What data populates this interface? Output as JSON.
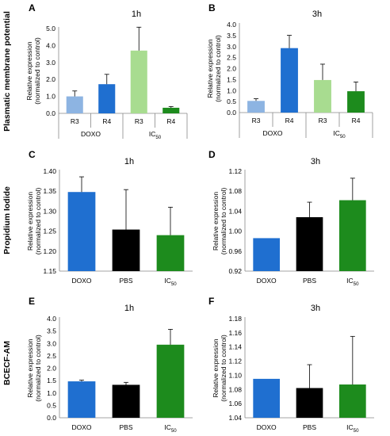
{
  "row_labels": [
    "Plasmatic membrane potential",
    "Propidium Iodide",
    "BCECF-AM"
  ],
  "colors": {
    "light_blue": "#8db4e2",
    "blue": "#1f6fd0",
    "light_green": "#a8dc90",
    "green": "#1d8b1d",
    "black": "#000000"
  },
  "chart_data": [
    {
      "panel": "A",
      "title": "1h",
      "type": "bar",
      "ylabel": "Relative expression (normalized to control)",
      "ylim": [
        0,
        5.0
      ],
      "yticks": [
        "0.0",
        "1.0",
        "2.0",
        "3.0",
        "4.0",
        "5.0"
      ],
      "categories": [
        "R3",
        "R4",
        "R3",
        "R4"
      ],
      "groups": [
        {
          "label": "DOXO",
          "sub": ""
        },
        {
          "label": "IC",
          "sub": "50"
        }
      ],
      "values": [
        1.0,
        1.72,
        3.7,
        0.33
      ],
      "errors": [
        0.32,
        0.58,
        1.38,
        0.07
      ],
      "colors": [
        "#8db4e2",
        "#1f6fd0",
        "#a8dc90",
        "#1d8b1d"
      ]
    },
    {
      "panel": "B",
      "title": "3h",
      "type": "bar",
      "ylabel": "Relative expression (normalized to control)",
      "ylim": [
        0,
        4.0
      ],
      "yticks": [
        "0.0",
        "0.5",
        "1.0",
        "1.5",
        "2.0",
        "2.5",
        "3.0",
        "3.5",
        "4.0"
      ],
      "categories": [
        "R3",
        "R4",
        "R3",
        "R4"
      ],
      "groups": [
        {
          "label": "DOXO",
          "sub": ""
        },
        {
          "label": "IC",
          "sub": "50"
        }
      ],
      "values": [
        0.53,
        2.93,
        1.48,
        0.97
      ],
      "errors": [
        0.1,
        0.58,
        0.72,
        0.42
      ],
      "colors": [
        "#8db4e2",
        "#1f6fd0",
        "#a8dc90",
        "#1d8b1d"
      ]
    },
    {
      "panel": "C",
      "title": "1h",
      "type": "bar",
      "ylabel": "Relative expression (normalized to control)",
      "ylim": [
        1.15,
        1.4
      ],
      "yticks": [
        "1.15",
        "1.20",
        "1.25",
        "1.30",
        "1.35",
        "1.40"
      ],
      "categories": [
        {
          "label": "DOXO",
          "sub": ""
        },
        {
          "label": "PBS",
          "sub": ""
        },
        {
          "label": "IC",
          "sub": "50"
        }
      ],
      "values": [
        1.348,
        1.254,
        1.24
      ],
      "errors": [
        0.038,
        0.1,
        0.07
      ],
      "colors": [
        "#1f6fd0",
        "#000000",
        "#1d8b1d"
      ]
    },
    {
      "panel": "D",
      "title": "3h",
      "type": "bar",
      "ylabel": "Relative expression (normalized to control)",
      "ylim": [
        0.92,
        1.12
      ],
      "yticks": [
        "0.92",
        "0.96",
        "1.00",
        "1.04",
        "1.08",
        "1.12"
      ],
      "categories": [
        {
          "label": "DOXO",
          "sub": ""
        },
        {
          "label": "PBS",
          "sub": ""
        },
        {
          "label": "IC",
          "sub": "50"
        }
      ],
      "values": [
        0.986,
        1.028,
        1.062
      ],
      "errors": [
        0.0,
        0.03,
        0.044
      ],
      "colors": [
        "#1f6fd0",
        "#000000",
        "#1d8b1d"
      ]
    },
    {
      "panel": "E",
      "title": "1h",
      "type": "bar",
      "ylabel": "Relative expression (normalized to control)",
      "ylim": [
        0,
        4.0
      ],
      "yticks": [
        "0.0",
        "0.5",
        "1.0",
        "1.5",
        "2.0",
        "2.5",
        "3.0",
        "3.5",
        "4.0"
      ],
      "categories": [
        {
          "label": "DOXO",
          "sub": ""
        },
        {
          "label": "PBS",
          "sub": ""
        },
        {
          "label": "IC",
          "sub": "50"
        }
      ],
      "values": [
        1.47,
        1.33,
        2.95
      ],
      "errors": [
        0.05,
        0.1,
        0.62
      ],
      "colors": [
        "#1f6fd0",
        "#000000",
        "#1d8b1d"
      ]
    },
    {
      "panel": "F",
      "title": "3h",
      "type": "bar",
      "ylabel": "Relative expression (normalized to control)",
      "ylim": [
        1.04,
        1.18
      ],
      "yticks": [
        "1.04",
        "1.06",
        "1.08",
        "1.10",
        "1.12",
        "1.14",
        "1.16",
        "1.18"
      ],
      "categories": [
        {
          "label": "DOXO",
          "sub": ""
        },
        {
          "label": "PBS",
          "sub": ""
        },
        {
          "label": "IC",
          "sub": "50"
        }
      ],
      "values": [
        1.095,
        1.082,
        1.087
      ],
      "errors": [
        0.0,
        0.033,
        0.068
      ],
      "colors": [
        "#1f6fd0",
        "#000000",
        "#1d8b1d"
      ]
    }
  ]
}
